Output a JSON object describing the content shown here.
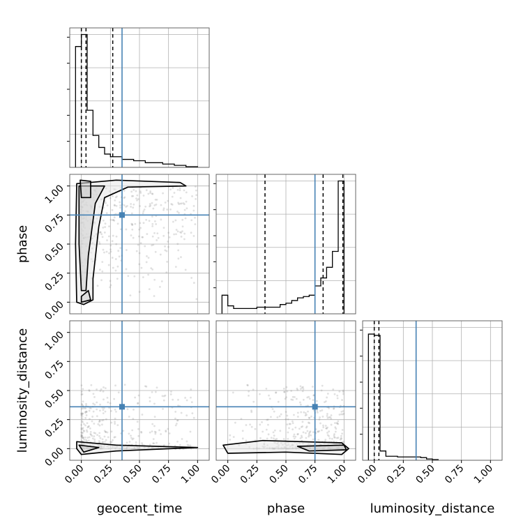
{
  "chart_data": [
    {
      "type": "histogram",
      "panel": "geocent_time",
      "xlim": [
        -0.1,
        1.1
      ],
      "bins": [
        {
          "x0": -0.05,
          "x1": 0.0,
          "count": 0.91
        },
        {
          "x0": 0.0,
          "x1": 0.05,
          "count": 1.0
        },
        {
          "x0": 0.05,
          "x1": 0.1,
          "count": 0.43
        },
        {
          "x0": 0.1,
          "x1": 0.15,
          "count": 0.24
        },
        {
          "x0": 0.15,
          "x1": 0.2,
          "count": 0.15
        },
        {
          "x0": 0.2,
          "x1": 0.25,
          "count": 0.1
        },
        {
          "x0": 0.25,
          "x1": 0.35,
          "count": 0.08
        },
        {
          "x0": 0.35,
          "x1": 0.45,
          "count": 0.06
        },
        {
          "x0": 0.45,
          "x1": 0.55,
          "count": 0.05
        },
        {
          "x0": 0.55,
          "x1": 0.7,
          "count": 0.035
        },
        {
          "x0": 0.7,
          "x1": 0.8,
          "count": 0.025
        },
        {
          "x0": 0.8,
          "x1": 0.9,
          "count": 0.015
        },
        {
          "x0": 0.9,
          "x1": 1.0,
          "count": 0.005
        }
      ],
      "quantiles": [
        0.0,
        0.04,
        0.27
      ],
      "truth": 0.35
    },
    {
      "type": "histogram",
      "panel": "phase",
      "xlim": [
        -0.1,
        1.1
      ],
      "bins": [
        {
          "x0": -0.05,
          "x1": 0.0,
          "count": 0.14
        },
        {
          "x0": 0.0,
          "x1": 0.05,
          "count": 0.06
        },
        {
          "x0": 0.05,
          "x1": 0.15,
          "count": 0.04
        },
        {
          "x0": 0.15,
          "x1": 0.25,
          "count": 0.04
        },
        {
          "x0": 0.25,
          "x1": 0.35,
          "count": 0.05
        },
        {
          "x0": 0.35,
          "x1": 0.45,
          "count": 0.05
        },
        {
          "x0": 0.45,
          "x1": 0.5,
          "count": 0.07
        },
        {
          "x0": 0.5,
          "x1": 0.55,
          "count": 0.08
        },
        {
          "x0": 0.55,
          "x1": 0.6,
          "count": 0.1
        },
        {
          "x0": 0.6,
          "x1": 0.65,
          "count": 0.12
        },
        {
          "x0": 0.65,
          "x1": 0.7,
          "count": 0.13
        },
        {
          "x0": 0.7,
          "x1": 0.75,
          "count": 0.14
        },
        {
          "x0": 0.75,
          "x1": 0.8,
          "count": 0.21
        },
        {
          "x0": 0.8,
          "x1": 0.85,
          "count": 0.27
        },
        {
          "x0": 0.85,
          "x1": 0.9,
          "count": 0.35
        },
        {
          "x0": 0.9,
          "x1": 0.95,
          "count": 0.47
        },
        {
          "x0": 0.95,
          "x1": 1.0,
          "count": 1.0
        }
      ],
      "quantiles": [
        0.32,
        0.82,
        0.99
      ],
      "truth": 0.75
    },
    {
      "type": "histogram",
      "panel": "luminosity_distance",
      "xlim": [
        -0.1,
        1.1
      ],
      "bins": [
        {
          "x0": -0.05,
          "x1": 0.0,
          "count": 0.95
        },
        {
          "x0": 0.0,
          "x1": 0.05,
          "count": 0.94
        },
        {
          "x0": 0.05,
          "x1": 0.1,
          "count": 0.07
        },
        {
          "x0": 0.1,
          "x1": 0.2,
          "count": 0.03
        },
        {
          "x0": 0.2,
          "x1": 0.3,
          "count": 0.025
        },
        {
          "x0": 0.3,
          "x1": 0.4,
          "count": 0.025
        },
        {
          "x0": 0.4,
          "x1": 0.45,
          "count": 0.02
        },
        {
          "x0": 0.45,
          "x1": 0.5,
          "count": 0.01
        },
        {
          "x0": 0.5,
          "x1": 0.55,
          "count": 0.005
        }
      ],
      "quantiles": [
        0.0,
        0.04
      ],
      "truth": 0.36
    },
    {
      "type": "scatter",
      "panel": "phase-vs-geocent_time",
      "xlabel": "",
      "ylabel": "phase",
      "xlim": [
        -0.1,
        1.1
      ],
      "ylim": [
        -0.1,
        1.1
      ],
      "truth": [
        0.35,
        0.75
      ],
      "contours": [
        [
          [
            -0.04,
            1.02
          ],
          [
            0.3,
            1.05
          ],
          [
            0.85,
            1.03
          ],
          [
            0.9,
            1.0
          ],
          [
            0.4,
            0.99
          ],
          [
            0.2,
            0.9
          ],
          [
            0.15,
            0.65
          ],
          [
            0.1,
            0.2
          ],
          [
            0.1,
            0.02
          ],
          [
            0.02,
            -0.02
          ],
          [
            -0.04,
            0.0
          ],
          [
            -0.05,
            0.5
          ]
        ],
        [
          [
            -0.02,
            1.0
          ],
          [
            0.2,
            1.0
          ],
          [
            0.12,
            0.85
          ],
          [
            0.06,
            0.4
          ],
          [
            0.04,
            0.1
          ],
          [
            0.0,
            0.1
          ],
          [
            -0.02,
            0.5
          ]
        ],
        [
          [
            0.0,
            0.0
          ],
          [
            0.08,
            0.02
          ],
          [
            0.06,
            0.1
          ],
          [
            0.0,
            0.05
          ]
        ],
        [
          [
            -0.01,
            1.05
          ],
          [
            0.08,
            1.04
          ],
          [
            0.08,
            0.9
          ],
          [
            0.0,
            0.9
          ]
        ]
      ]
    },
    {
      "type": "scatter",
      "panel": "luminosity_distance-vs-geocent_time",
      "xlabel": "geocent_time",
      "ylabel": "luminosity_distance",
      "xlim": [
        -0.1,
        1.1
      ],
      "ylim": [
        -0.1,
        1.1
      ],
      "truth": [
        0.35,
        0.36
      ],
      "contours": [
        [
          [
            -0.04,
            0.06
          ],
          [
            0.3,
            0.03
          ],
          [
            1.0,
            0.01
          ],
          [
            0.3,
            -0.02
          ],
          [
            0.0,
            -0.05
          ],
          [
            -0.04,
            0.0
          ]
        ],
        [
          [
            -0.02,
            0.03
          ],
          [
            0.15,
            0.01
          ],
          [
            0.02,
            -0.03
          ]
        ]
      ]
    },
    {
      "type": "scatter",
      "panel": "luminosity_distance-vs-phase",
      "xlabel": "phase",
      "ylabel": "",
      "xlim": [
        -0.1,
        1.1
      ],
      "ylim": [
        -0.1,
        1.1
      ],
      "truth": [
        0.75,
        0.36
      ],
      "contours": [
        [
          [
            -0.04,
            0.03
          ],
          [
            0.3,
            0.07
          ],
          [
            0.98,
            0.05
          ],
          [
            1.04,
            0.0
          ],
          [
            0.98,
            -0.05
          ],
          [
            0.5,
            -0.03
          ],
          [
            0.0,
            -0.04
          ]
        ],
        [
          [
            0.6,
            0.02
          ],
          [
            1.0,
            0.03
          ],
          [
            1.02,
            -0.01
          ],
          [
            0.7,
            -0.02
          ]
        ]
      ]
    }
  ],
  "tick_labels": [
    "0.00",
    "0.25",
    "0.50",
    "0.75",
    "1.00"
  ],
  "colors": {
    "truth": "#4682b4",
    "line": "#000000",
    "grid": "#b0b0b0"
  }
}
